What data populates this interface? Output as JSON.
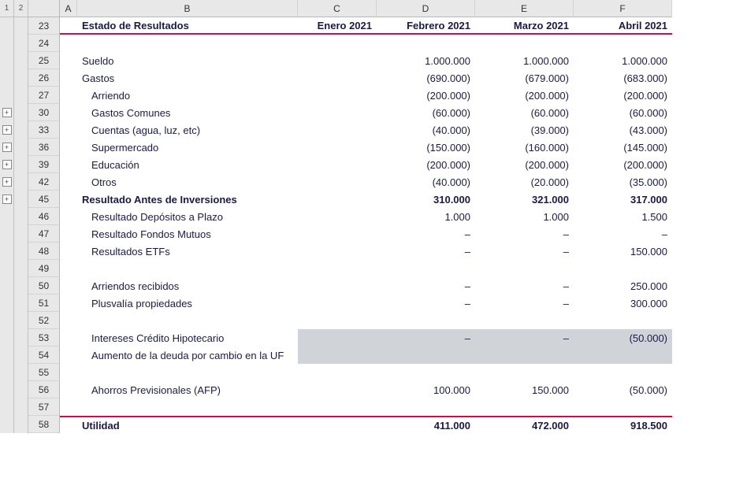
{
  "outline_levels": [
    "1",
    "2"
  ],
  "columns": [
    "A",
    "B",
    "C",
    "D",
    "E",
    "F"
  ],
  "header": {
    "title": "Estado de Resultados",
    "months": [
      "Enero 2021",
      "Febrero 2021",
      "Marzo 2021",
      "Abril 2021"
    ]
  },
  "rows": [
    {
      "n": "23",
      "type": "title"
    },
    {
      "n": "24",
      "type": "blank"
    },
    {
      "n": "25",
      "type": "line",
      "label": "Sueldo",
      "indent": 0,
      "vals": [
        "1.000.000",
        "1.000.000",
        "1.000.000"
      ]
    },
    {
      "n": "26",
      "type": "line",
      "label": "Gastos",
      "indent": 0,
      "vals": [
        "(690.000)",
        "(679.000)",
        "(683.000)"
      ]
    },
    {
      "n": "27",
      "type": "line",
      "label": "Arriendo",
      "indent": 1,
      "vals": [
        "(200.000)",
        "(200.000)",
        "(200.000)"
      ]
    },
    {
      "n": "30",
      "type": "line",
      "label": "Gastos Comunes",
      "indent": 1,
      "vals": [
        "(60.000)",
        "(60.000)",
        "(60.000)"
      ],
      "expand": true
    },
    {
      "n": "33",
      "type": "line",
      "label": "Cuentas (agua, luz, etc)",
      "indent": 1,
      "vals": [
        "(40.000)",
        "(39.000)",
        "(43.000)"
      ],
      "expand": true
    },
    {
      "n": "36",
      "type": "line",
      "label": "Supermercado",
      "indent": 1,
      "vals": [
        "(150.000)",
        "(160.000)",
        "(145.000)"
      ],
      "expand": true
    },
    {
      "n": "39",
      "type": "line",
      "label": "Educación",
      "indent": 1,
      "vals": [
        "(200.000)",
        "(200.000)",
        "(200.000)"
      ],
      "expand": true
    },
    {
      "n": "42",
      "type": "line",
      "label": "Otros",
      "indent": 1,
      "vals": [
        "(40.000)",
        "(20.000)",
        "(35.000)"
      ],
      "expand": true
    },
    {
      "n": "45",
      "type": "line",
      "label": "Resultado Antes de Inversiones",
      "indent": 0,
      "bold": true,
      "vals": [
        "310.000",
        "321.000",
        "317.000"
      ],
      "expand": true
    },
    {
      "n": "46",
      "type": "line",
      "label": "Resultado Depósitos a Plazo",
      "indent": 1,
      "vals": [
        "1.000",
        "1.000",
        "1.500"
      ]
    },
    {
      "n": "47",
      "type": "line",
      "label": "Resultado Fondos Mutuos",
      "indent": 1,
      "vals": [
        "–",
        "–",
        "–"
      ]
    },
    {
      "n": "48",
      "type": "line",
      "label": "Resultados ETFs",
      "indent": 1,
      "vals": [
        "–",
        "–",
        "150.000"
      ]
    },
    {
      "n": "49",
      "type": "blank"
    },
    {
      "n": "50",
      "type": "line",
      "label": "Arriendos recibidos",
      "indent": 1,
      "vals": [
        "–",
        "–",
        "250.000"
      ]
    },
    {
      "n": "51",
      "type": "line",
      "label": "Plusvalía propiedades",
      "indent": 1,
      "vals": [
        "–",
        "–",
        "300.000"
      ]
    },
    {
      "n": "52",
      "type": "blank"
    },
    {
      "n": "53",
      "type": "line",
      "label": "Intereses Crédito Hipotecario",
      "indent": 1,
      "vals": [
        "–",
        "–",
        "(50.000)"
      ],
      "shade": true
    },
    {
      "n": "54",
      "type": "line",
      "label": "Aumento de la deuda por cambio en la UF",
      "indent": 1,
      "vals": [
        "",
        "",
        ""
      ],
      "shade": true
    },
    {
      "n": "55",
      "type": "blank"
    },
    {
      "n": "56",
      "type": "line",
      "label": "Ahorros Previsionales (AFP)",
      "indent": 1,
      "vals": [
        "100.000",
        "150.000",
        "(50.000)"
      ]
    },
    {
      "n": "57",
      "type": "blank"
    },
    {
      "n": "58",
      "type": "total",
      "label": "Utilidad",
      "bold": true,
      "vals": [
        "411.000",
        "472.000",
        "918.500"
      ]
    }
  ],
  "colors": {
    "text": "#1a1a4a",
    "accent": "#c01050",
    "grid_bg": "#e8e8e8",
    "shade": "#d0d4d8"
  }
}
